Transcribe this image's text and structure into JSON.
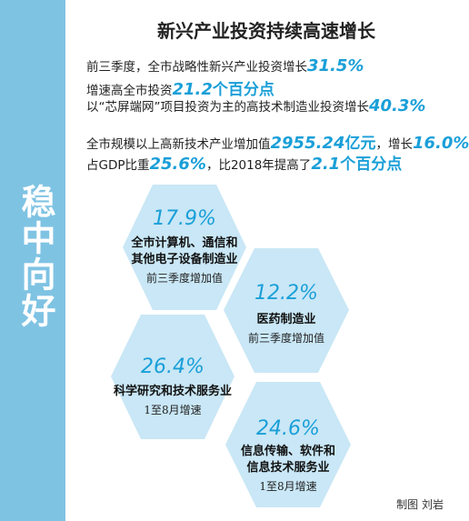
{
  "side_title": "稳中向好",
  "title": "新兴产业投资持续高速增长",
  "lines": [
    {
      "pre": "前三季度，全市战略性新兴产业投资增长",
      "v1": "31.5%",
      "mid": "",
      "v2": "",
      "post": ""
    },
    {
      "pre": "增速高全市投资",
      "v1": "21.2",
      "mid": "",
      "v2": "个百分点",
      "post": ""
    },
    {
      "pre": "以“芯屏端网”项目投资为主的高技术制造业投资增长",
      "v1": "40.3%",
      "mid": "",
      "v2": "",
      "post": ""
    },
    {
      "pre": "全市规模以上高新技术产业增加值",
      "v1": "2955.24",
      "mid": "亿元",
      "v2": "，增长",
      "post": "16.0%"
    },
    {
      "pre": "占GDP比重",
      "v1": "25.6%",
      "mid": "，比2018年提高了",
      "v2": "2.1",
      "post": "个百分点"
    }
  ],
  "hexagons": [
    {
      "pct": "17.9%",
      "name_1": "全市计算机、通信和",
      "name_2": "其他电子设备制造业",
      "sub": "前三季度增加值"
    },
    {
      "pct": "12.2%",
      "name_1": "医药制造业",
      "name_2": "",
      "sub": "前三季度增加值"
    },
    {
      "pct": "26.4%",
      "name_1": "科学研究和技术服务业",
      "name_2": "",
      "sub": "1至8月增速"
    },
    {
      "pct": "24.6%",
      "name_1": "信息传输、软件和",
      "name_2": "信息技术服务业",
      "sub": "1至8月增速"
    }
  ],
  "credit": "制图 刘岩",
  "colors": {
    "accent": "#1a9fd8",
    "band": "#7fc3e3",
    "hex_fill": "#c9e7f6"
  }
}
